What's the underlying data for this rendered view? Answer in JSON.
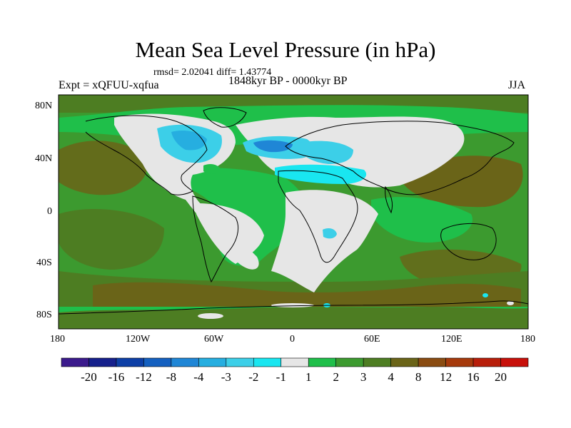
{
  "title": "Mean Sea Level Pressure (in hPa)",
  "stats_line": "rmsd= 2.02041 diff= 1.43774",
  "experiment": "Expt = xQFUU-xqfua",
  "period": "1848kyr BP - 0000kyr BP",
  "season": "JJA",
  "axes": {
    "x_ticks": [
      "180",
      "120W",
      "60W",
      "0",
      "60E",
      "120E",
      "180"
    ],
    "y_ticks": [
      "80N",
      "40N",
      "0",
      "40S",
      "80S"
    ]
  },
  "colorbar": {
    "labels": [
      "-20",
      "-16",
      "-12",
      "-8",
      "-4",
      "-3",
      "-2",
      "-1",
      "1",
      "2",
      "3",
      "4",
      "8",
      "12",
      "16",
      "20"
    ],
    "colors": [
      "#3b1a8c",
      "#16208c",
      "#0d3fa6",
      "#1460c0",
      "#1f86d6",
      "#26aee0",
      "#3ccfe8",
      "#19e6f0",
      "#e6e6e6",
      "#1fbf4a",
      "#3c9a2f",
      "#4d7d22",
      "#6a6418",
      "#8a4c12",
      "#a63a0c",
      "#b81e0a",
      "#c8100a"
    ]
  },
  "palette": {
    "ocean_base": "#3c9a2f",
    "land_low": "#e6e6e6",
    "high_band": "#6a6418"
  }
}
